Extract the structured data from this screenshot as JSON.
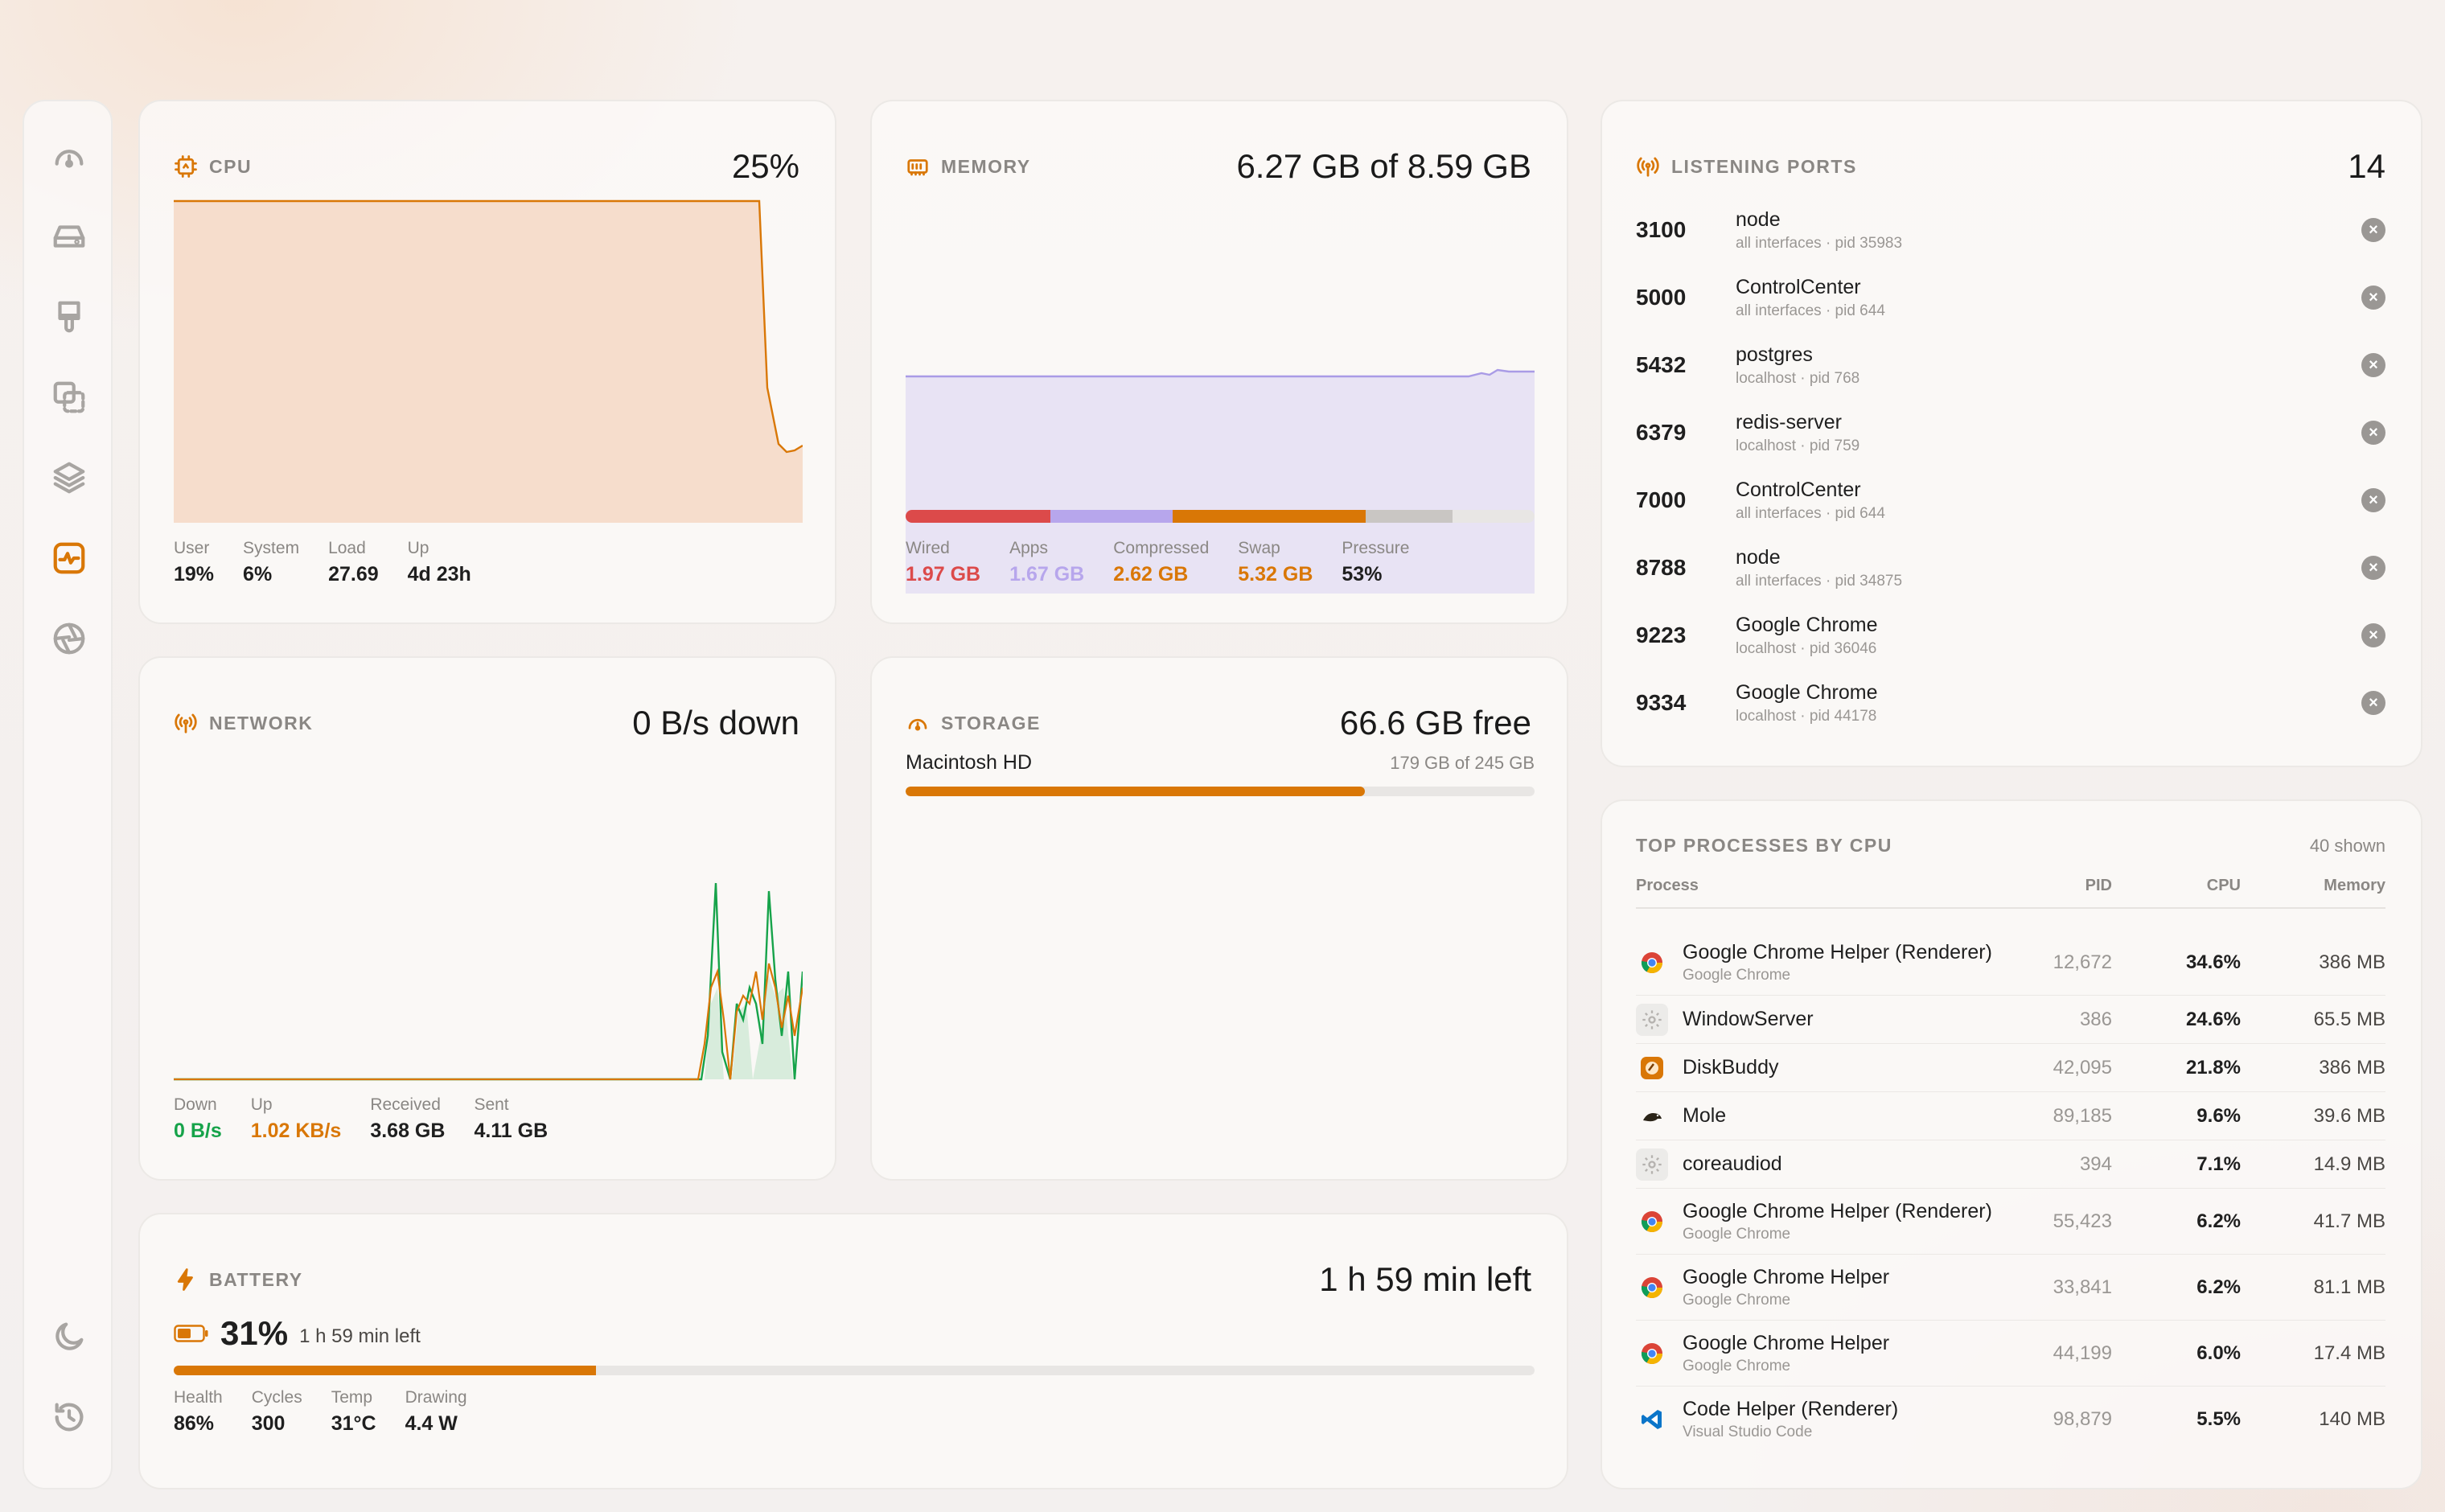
{
  "colors": {
    "accent": "#d97706",
    "wired": "#dc4a4a",
    "apps": "#b7a6ec",
    "compressed": "#d97706",
    "swap": "#d97706",
    "green": "#16a34a"
  },
  "cpu": {
    "label": "CPU",
    "value": "25%",
    "stats": [
      {
        "k": "User",
        "v": "19%"
      },
      {
        "k": "System",
        "v": "6%"
      },
      {
        "k": "Load",
        "v": "27.69"
      },
      {
        "k": "Up",
        "v": "4d 23h"
      }
    ]
  },
  "memory": {
    "label": "MEMORY",
    "value": "6.27 GB of 8.59 GB",
    "stats": [
      {
        "k": "Wired",
        "v": "1.97 GB"
      },
      {
        "k": "Apps",
        "v": "1.67 GB"
      },
      {
        "k": "Compressed",
        "v": "2.62 GB"
      },
      {
        "k": "Swap",
        "v": "5.32 GB"
      },
      {
        "k": "Pressure",
        "v": "53%"
      }
    ]
  },
  "ports": {
    "label": "LISTENING PORTS",
    "count": "14",
    "items": [
      {
        "port": "3100",
        "name": "node",
        "detail": "all interfaces · pid 35983"
      },
      {
        "port": "5000",
        "name": "ControlCenter",
        "detail": "all interfaces · pid 644"
      },
      {
        "port": "5432",
        "name": "postgres",
        "detail": "localhost · pid 768"
      },
      {
        "port": "6379",
        "name": "redis-server",
        "detail": "localhost · pid 759"
      },
      {
        "port": "7000",
        "name": "ControlCenter",
        "detail": "all interfaces · pid 644"
      },
      {
        "port": "8788",
        "name": "node",
        "detail": "all interfaces · pid 34875"
      },
      {
        "port": "9223",
        "name": "Google Chrome",
        "detail": "localhost · pid 36046"
      },
      {
        "port": "9334",
        "name": "Google Chrome",
        "detail": "localhost · pid 44178"
      }
    ]
  },
  "network": {
    "label": "NETWORK",
    "value": "0 B/s down",
    "stats": [
      {
        "k": "Down",
        "v": "0 B/s"
      },
      {
        "k": "Up",
        "v": "1.02 KB/s"
      },
      {
        "k": "Received",
        "v": "3.68 GB"
      },
      {
        "k": "Sent",
        "v": "4.11 GB"
      }
    ]
  },
  "storage": {
    "label": "STORAGE",
    "value": "66.6 GB free",
    "disk_name": "Macintosh HD",
    "disk_usage": "179 GB of 245 GB",
    "used_fraction": 0.73
  },
  "battery": {
    "label": "BATTERY",
    "value": "1 h 59 min left",
    "percent": "31%",
    "sub": "1 h 59 min left",
    "fill_fraction": 0.31,
    "stats": [
      {
        "k": "Health",
        "v": "86%"
      },
      {
        "k": "Cycles",
        "v": "300"
      },
      {
        "k": "Temp",
        "v": "31°C"
      },
      {
        "k": "Drawing",
        "v": "4.4 W"
      }
    ]
  },
  "processes": {
    "title": "TOP PROCESSES BY CPU",
    "shown": "40 shown",
    "headers": {
      "process": "Process",
      "pid": "PID",
      "cpu": "CPU",
      "memory": "Memory"
    },
    "rows": [
      {
        "name": "Google Chrome Helper (Renderer)",
        "sub": "Google Chrome",
        "pid": "12,672",
        "cpu": "34.6%",
        "mem": "386 MB",
        "icon": "chrome-icon"
      },
      {
        "name": "WindowServer",
        "sub": "",
        "pid": "386",
        "cpu": "24.6%",
        "mem": "65.5 MB",
        "icon": "gear-icon"
      },
      {
        "name": "DiskBuddy",
        "sub": "",
        "pid": "42,095",
        "cpu": "21.8%",
        "mem": "386 MB",
        "icon": "diskbuddy-icon"
      },
      {
        "name": "Mole",
        "sub": "",
        "pid": "89,185",
        "cpu": "9.6%",
        "mem": "39.6 MB",
        "icon": "mole-icon"
      },
      {
        "name": "coreaudiod",
        "sub": "",
        "pid": "394",
        "cpu": "7.1%",
        "mem": "14.9 MB",
        "icon": "gear-icon"
      },
      {
        "name": "Google Chrome Helper (Renderer)",
        "sub": "Google Chrome",
        "pid": "55,423",
        "cpu": "6.2%",
        "mem": "41.7 MB",
        "icon": "chrome-icon"
      },
      {
        "name": "Google Chrome Helper",
        "sub": "Google Chrome",
        "pid": "33,841",
        "cpu": "6.2%",
        "mem": "81.1 MB",
        "icon": "chrome-icon"
      },
      {
        "name": "Google Chrome Helper",
        "sub": "Google Chrome",
        "pid": "44,199",
        "cpu": "6.0%",
        "mem": "17.4 MB",
        "icon": "chrome-icon"
      },
      {
        "name": "Code Helper (Renderer)",
        "sub": "Visual Studio Code",
        "pid": "98,879",
        "cpu": "5.5%",
        "mem": "140 MB",
        "icon": "vscode-icon"
      }
    ]
  }
}
